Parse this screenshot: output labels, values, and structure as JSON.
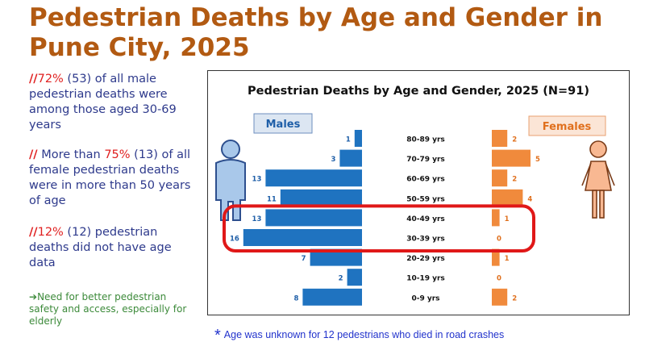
{
  "page": {
    "title": "Pedestrian Deaths by Age and Gender in Pune City, 2025"
  },
  "bullets": [
    {
      "slash": "//",
      "highlight": "72%",
      "text": " (53) of all male pedestrian deaths were among those aged 30-69 years"
    },
    {
      "slash": "//",
      "prefix": " More than ",
      "highlight": "75%",
      "text": " (13) of all female pedestrian deaths were in more than 50 years of age"
    },
    {
      "slash": "//",
      "highlight": "12%",
      "text": " (12) pedestrian deaths did not have age data"
    }
  ],
  "note": {
    "arrow": "➔",
    "text": "Need for better pedestrian safety and access, especially for elderly"
  },
  "footnote": {
    "star": "*",
    "text": "Age was unknown for 12 pedestrians who died in road crashes"
  },
  "colors": {
    "male": "#1f73c0",
    "female": "#f08a3c",
    "title": "#b25a12",
    "highlight": "#e02020"
  },
  "chart_data": {
    "type": "bar",
    "title": "Pedestrian Deaths by Age and Gender, 2025 (N=91)",
    "categories": [
      "80-89 yrs",
      "70-79 yrs",
      "60-69 yrs",
      "50-59 yrs",
      "40-49 yrs",
      "30-39 yrs",
      "20-29 yrs",
      "10-19 yrs",
      "0-9 yrs"
    ],
    "series": [
      {
        "name": "Males",
        "values": [
          1,
          3,
          13,
          11,
          13,
          16,
          7,
          2,
          8
        ]
      },
      {
        "name": "Females",
        "values": [
          2,
          5,
          2,
          4,
          1,
          0,
          1,
          0,
          2
        ]
      }
    ],
    "highlighted_categories": [
      "40-49 yrs",
      "30-39 yrs"
    ],
    "xlabel": "",
    "ylabel": ""
  }
}
